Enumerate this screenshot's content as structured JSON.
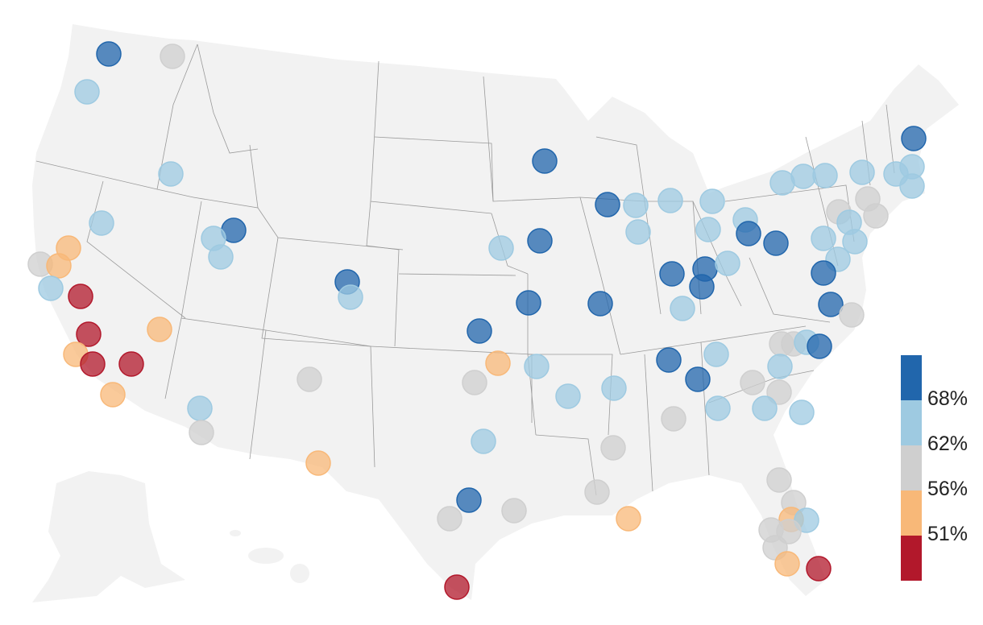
{
  "map": {
    "land_color": "#f2f2f2",
    "border_color": "#9a9a9a",
    "marker_opacity": 0.75
  },
  "legend": {
    "bins": [
      {
        "color": "#2166ac"
      },
      {
        "color": "#9ecae1"
      },
      {
        "color": "#cfcfcf"
      },
      {
        "color": "#f8b878"
      },
      {
        "color": "#b2182b"
      }
    ],
    "labels": [
      "68%",
      "62%",
      "56%",
      "51%"
    ]
  }
}
